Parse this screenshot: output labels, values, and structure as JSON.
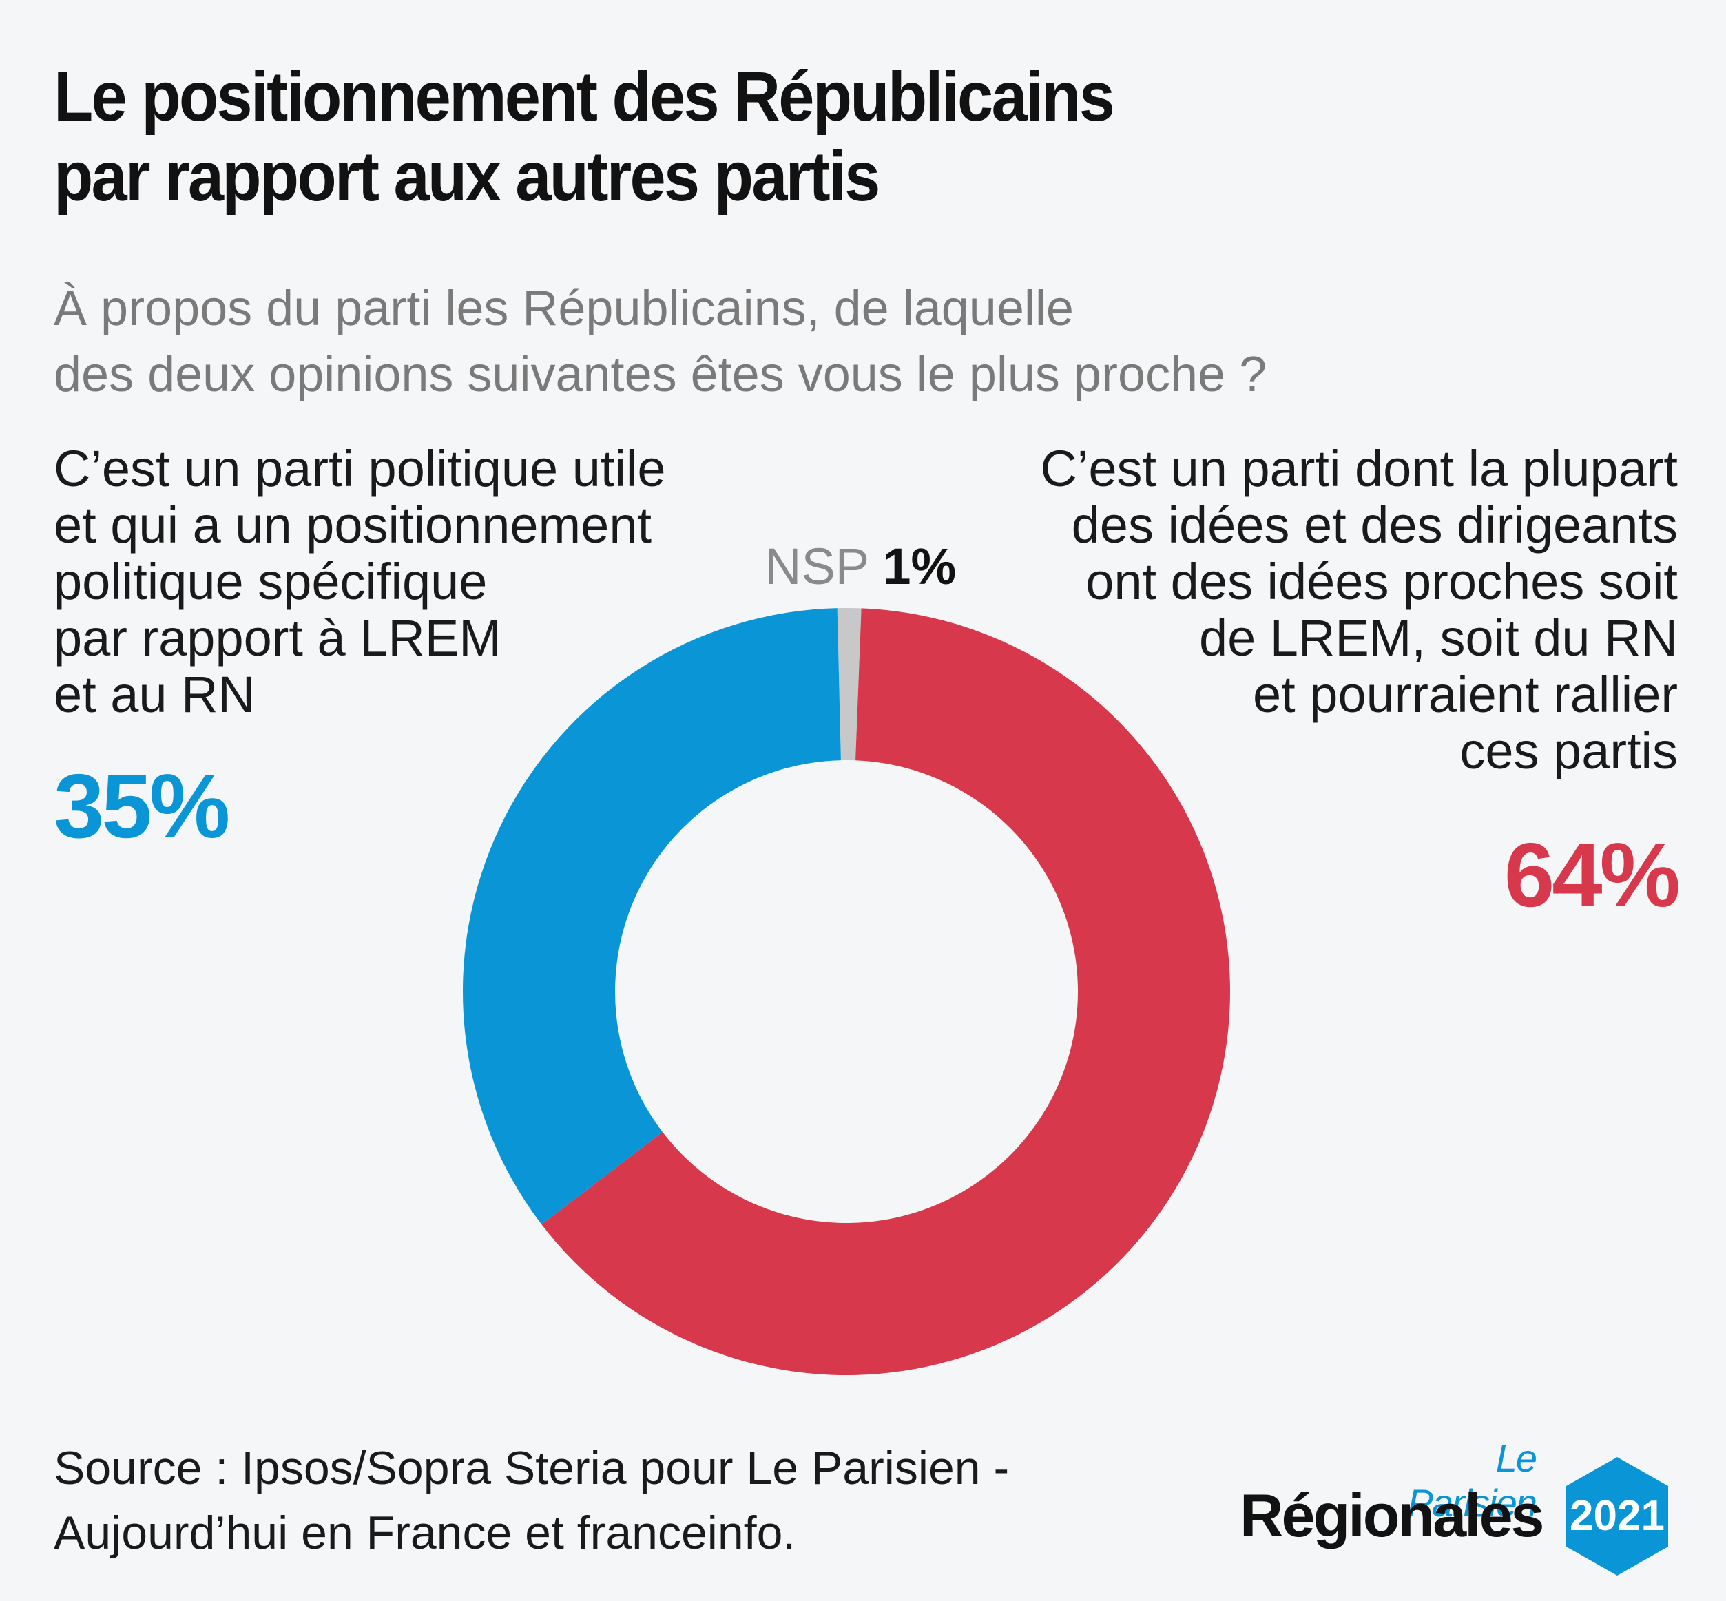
{
  "title_lines": [
    "Le positionnement des Républicains",
    "par rapport aux autres partis"
  ],
  "subtitle_lines": [
    "À propos du parti les Républicains, de laquelle",
    "des deux opinions suivantes êtes vous le plus proche ?"
  ],
  "left_label_lines": [
    "C’est un parti politique utile",
    "et qui a un positionnement",
    "politique spécifique",
    "par rapport à LREM",
    "et au RN"
  ],
  "right_label_lines": [
    "C’est un parti dont la plupart",
    "des idées et des dirigeants",
    "ont des idées proches soit",
    "de LREM, soit du RN",
    "et pourraient rallier",
    "ces partis"
  ],
  "left_pct": "35%",
  "right_pct": "64%",
  "nsp_label": "NSP",
  "nsp_pct": "1%",
  "source_lines": [
    "Source : Ipsos/Sopra Steria pour Le Parisien -",
    "Aujourd’hui en France et franceinfo."
  ],
  "brand": {
    "top": "Le Parisien",
    "main": "Régionales",
    "year": "2021"
  },
  "colors": {
    "blue": "#0a95d6",
    "red": "#d8384c",
    "grey": "#c8c8c8",
    "hex": "#0a95d6"
  },
  "chart_data": {
    "type": "pie",
    "donut": true,
    "slices": [
      {
        "label": "NSP",
        "value": 1,
        "color": "#c8c8c8"
      },
      {
        "label": "C’est un parti dont la plupart des idées et des dirigeants ont des idées proches soit de LREM, soit du RN et pourraient rallier ces partis",
        "value": 64,
        "color": "#d8384c"
      },
      {
        "label": "C’est un parti politique utile et qui a un positionnement politique spécifique par rapport à LREM et au RN",
        "value": 35,
        "color": "#0a95d6"
      }
    ]
  }
}
